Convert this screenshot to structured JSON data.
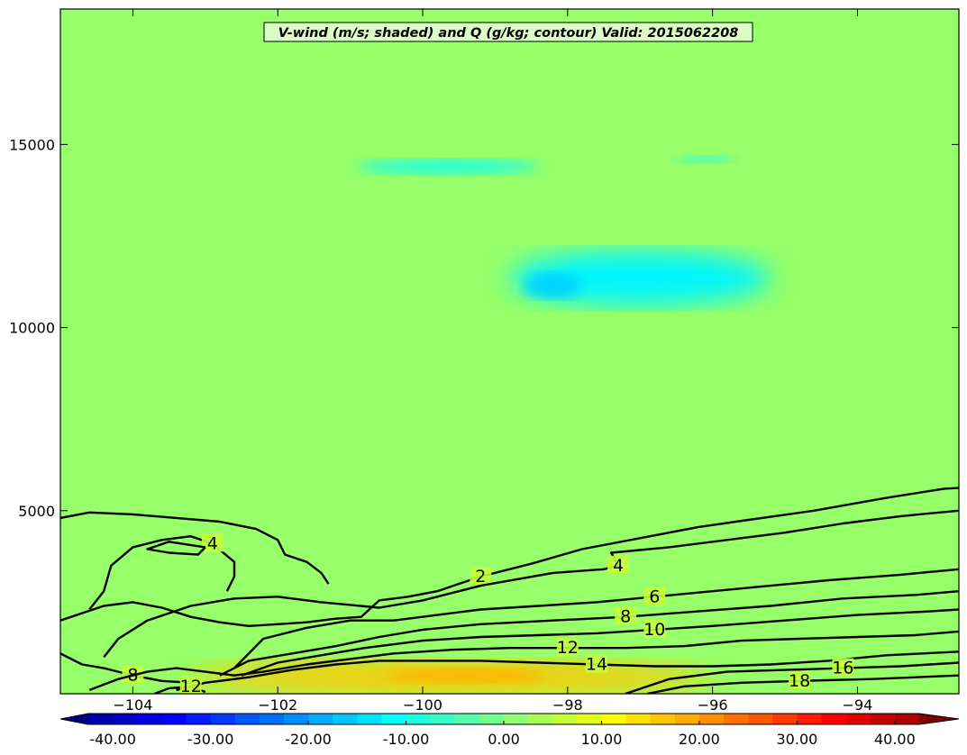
{
  "chart_data": {
    "type": "heatmap",
    "title": "V-wind (m/s; shaded) and Q (g/kg; contour) Valid: 2015062208",
    "xlabel": "",
    "ylabel": "",
    "xlim": [
      -105.0,
      -92.6
    ],
    "ylim": [
      0,
      18700
    ],
    "x_ticks": [
      -104,
      -102,
      -100,
      -98,
      -96,
      -94
    ],
    "y_ticks": [
      5000,
      10000,
      15000
    ],
    "x_tick_labels": [
      "−104",
      "−102",
      "−100",
      "−98",
      "−96",
      "−94"
    ],
    "y_tick_labels": [
      "5000",
      "10000",
      "15000"
    ],
    "colorbar": {
      "min": -45,
      "max": 45,
      "step": 2.5,
      "extend": "both",
      "tick_values": [
        -40,
        -30,
        -20,
        -10,
        0,
        10,
        20,
        30,
        40
      ],
      "tick_labels": [
        "-40.00",
        "-30.00",
        "-20.00",
        "-10.00",
        "0.00",
        "10.00",
        "20.00",
        "30.00",
        "40.00"
      ],
      "colormap": "jet"
    },
    "shaded_regions": [
      {
        "name": "upper-blue-minimum",
        "x": [
          -98.8,
          -95.2
        ],
        "y": [
          10600,
          12100
        ],
        "value": -12
      },
      {
        "name": "upper-blue-core",
        "x": [
          -98.6,
          -97.8
        ],
        "y": [
          10800,
          11500
        ],
        "value": -15
      },
      {
        "name": "high-blue-streak",
        "x": [
          -100.9,
          -98.4
        ],
        "y": [
          14200,
          14600
        ],
        "value": -9
      },
      {
        "name": "high-blue-streak-2",
        "x": [
          -96.5,
          -95.7
        ],
        "y": [
          14500,
          14700
        ],
        "value": -8
      },
      {
        "name": "low-level-jet",
        "x": [
          -103.2,
          -96.0
        ],
        "y": [
          0,
          900
        ],
        "value": 16
      },
      {
        "name": "low-level-jet-core",
        "x": [
          -100.5,
          -98.3
        ],
        "y": [
          300,
          700
        ],
        "value": 18
      }
    ],
    "contours": [
      {
        "level": 2,
        "label": "2",
        "points": [
          [
            -105.0,
            2000
          ],
          [
            -104.4,
            2400
          ],
          [
            -104.0,
            2500
          ],
          [
            -103.6,
            2350
          ],
          [
            -103.2,
            2100
          ],
          [
            -102.8,
            1950
          ],
          [
            -102.4,
            1850
          ],
          [
            -102.0,
            1900
          ],
          [
            -101.6,
            1950
          ],
          [
            -101.2,
            2050
          ],
          [
            -100.85,
            2100
          ],
          [
            -100.6,
            2550
          ],
          [
            -100.2,
            2650
          ],
          [
            -99.8,
            2800
          ],
          [
            -99.2,
            3200
          ],
          [
            -98.5,
            3550
          ],
          [
            -97.8,
            3950
          ],
          [
            -97.0,
            4250
          ],
          [
            -96.2,
            4550
          ],
          [
            -95.5,
            4750
          ],
          [
            -94.6,
            5000
          ],
          [
            -93.6,
            5350
          ],
          [
            -92.8,
            5600
          ],
          [
            -92.6,
            5620
          ]
        ]
      },
      {
        "level": 2,
        "label": "",
        "points": [
          [
            -105.0,
            4800
          ],
          [
            -104.6,
            4950
          ],
          [
            -104.0,
            4900
          ],
          [
            -103.4,
            4800
          ],
          [
            -102.8,
            4700
          ],
          [
            -102.3,
            4500
          ],
          [
            -102.0,
            4200
          ],
          [
            -101.9,
            3800
          ],
          [
            -101.6,
            3600
          ],
          [
            -101.4,
            3300
          ],
          [
            -101.3,
            3000
          ]
        ]
      },
      {
        "level": 4,
        "label": "4",
        "points": [
          [
            -104.6,
            2300
          ],
          [
            -104.4,
            2800
          ],
          [
            -104.3,
            3500
          ],
          [
            -104.0,
            4000
          ],
          [
            -103.6,
            4200
          ],
          [
            -103.2,
            4300
          ],
          [
            -102.9,
            4100
          ],
          [
            -102.6,
            3600
          ],
          [
            -102.6,
            3200
          ],
          [
            -102.7,
            2800
          ]
        ]
      },
      {
        "level": 4,
        "label": "",
        "points": [
          [
            -103.0,
            4000
          ],
          [
            -103.5,
            4150
          ],
          [
            -103.8,
            3950
          ],
          [
            -103.5,
            3850
          ],
          [
            -103.1,
            3800
          ],
          [
            -103.0,
            4000
          ]
        ]
      },
      {
        "level": 4,
        "label": "4",
        "points": [
          [
            -104.4,
            1000
          ],
          [
            -104.2,
            1500
          ],
          [
            -103.8,
            2000
          ],
          [
            -103.2,
            2400
          ],
          [
            -102.6,
            2600
          ],
          [
            -102.0,
            2650
          ],
          [
            -101.4,
            2500
          ],
          [
            -100.6,
            2350
          ],
          [
            -100.0,
            2550
          ],
          [
            -99.2,
            2950
          ],
          [
            -98.2,
            3300
          ],
          [
            -97.5,
            3400
          ],
          [
            -97.3,
            3500
          ],
          [
            -97.4,
            3850
          ],
          [
            -96.6,
            4000
          ],
          [
            -95.8,
            4200
          ],
          [
            -95.0,
            4400
          ],
          [
            -94.2,
            4650
          ],
          [
            -93.4,
            4850
          ],
          [
            -92.6,
            5000
          ]
        ]
      },
      {
        "level": 6,
        "label": "6",
        "points": [
          [
            -102.6,
            700
          ],
          [
            -102.2,
            1500
          ],
          [
            -101.6,
            1800
          ],
          [
            -101.0,
            2000
          ],
          [
            -100.4,
            2000
          ],
          [
            -99.8,
            2150
          ],
          [
            -99.2,
            2300
          ],
          [
            -98.4,
            2400
          ],
          [
            -97.6,
            2500
          ],
          [
            -96.8,
            2650
          ],
          [
            -96.0,
            2800
          ],
          [
            -95.2,
            2950
          ],
          [
            -94.4,
            3100
          ],
          [
            -93.4,
            3250
          ],
          [
            -92.6,
            3400
          ]
        ]
      },
      {
        "level": 8,
        "label": "8",
        "points": [
          [
            -105.0,
            1100
          ],
          [
            -104.7,
            800
          ],
          [
            -104.4,
            700
          ],
          [
            -104.0,
            500
          ],
          [
            -103.6,
            350
          ],
          [
            -103.2,
            300
          ]
        ]
      },
      {
        "level": 8,
        "label": "8",
        "points": [
          [
            -102.8,
            500
          ],
          [
            -102.4,
            900
          ],
          [
            -101.8,
            1100
          ],
          [
            -101.2,
            1300
          ],
          [
            -100.6,
            1550
          ],
          [
            -100.0,
            1750
          ],
          [
            -99.2,
            1900
          ],
          [
            -98.2,
            2000
          ],
          [
            -97.2,
            2100
          ],
          [
            -96.2,
            2250
          ],
          [
            -95.2,
            2400
          ],
          [
            -94.2,
            2600
          ],
          [
            -93.2,
            2700
          ],
          [
            -92.6,
            2800
          ]
        ]
      },
      {
        "level": 10,
        "label": "10",
        "points": [
          [
            -102.5,
            500
          ],
          [
            -102.0,
            850
          ],
          [
            -101.4,
            1050
          ],
          [
            -100.8,
            1250
          ],
          [
            -100.0,
            1450
          ],
          [
            -99.2,
            1550
          ],
          [
            -98.4,
            1600
          ],
          [
            -97.6,
            1650
          ],
          [
            -96.8,
            1750
          ],
          [
            -96.0,
            1850
          ],
          [
            -95.0,
            2000
          ],
          [
            -94.0,
            2150
          ],
          [
            -93.0,
            2250
          ],
          [
            -92.6,
            2300
          ]
        ]
      },
      {
        "level": 12,
        "label": "12",
        "points": [
          [
            -104.6,
            100
          ],
          [
            -104.2,
            400
          ],
          [
            -103.8,
            600
          ],
          [
            -103.4,
            700
          ],
          [
            -103.0,
            600
          ],
          [
            -102.6,
            500
          ],
          [
            -102.2,
            600
          ],
          [
            -101.6,
            800
          ],
          [
            -101.0,
            950
          ],
          [
            -100.4,
            1100
          ],
          [
            -99.6,
            1200
          ],
          [
            -98.8,
            1250
          ],
          [
            -98.0,
            1250
          ],
          [
            -97.2,
            1250
          ],
          [
            -96.4,
            1300
          ],
          [
            -95.6,
            1450
          ],
          [
            -94.8,
            1500
          ],
          [
            -94.0,
            1550
          ],
          [
            -93.2,
            1600
          ],
          [
            -92.6,
            1700
          ]
        ]
      },
      {
        "level": 14,
        "label": "14",
        "points": [
          [
            -103.4,
            100
          ],
          [
            -103.0,
            300
          ],
          [
            -102.4,
            450
          ],
          [
            -101.8,
            650
          ],
          [
            -101.2,
            800
          ],
          [
            -100.6,
            900
          ],
          [
            -100.0,
            900
          ],
          [
            -99.2,
            900
          ],
          [
            -98.4,
            850
          ],
          [
            -97.6,
            800
          ],
          [
            -96.8,
            750
          ],
          [
            -96.0,
            750
          ],
          [
            -95.2,
            800
          ],
          [
            -94.4,
            900
          ],
          [
            -93.6,
            1050
          ],
          [
            -92.6,
            1150
          ]
        ]
      },
      {
        "level": 16,
        "label": "16",
        "points": [
          [
            -97.2,
            0
          ],
          [
            -96.6,
            400
          ],
          [
            -95.8,
            600
          ],
          [
            -95.0,
            650
          ],
          [
            -94.2,
            700
          ],
          [
            -93.4,
            750
          ],
          [
            -92.6,
            850
          ]
        ]
      },
      {
        "level": 18,
        "label": "18",
        "points": [
          [
            -96.9,
            0
          ],
          [
            -96.4,
            200
          ],
          [
            -95.6,
            300
          ],
          [
            -94.8,
            350
          ],
          [
            -93.8,
            400
          ],
          [
            -92.6,
            500
          ]
        ]
      },
      {
        "level": 12,
        "label": "12",
        "points": [
          [
            -103.7,
            0
          ],
          [
            -103.5,
            150
          ],
          [
            -103.2,
            200
          ],
          [
            -103.0,
            50
          ]
        ]
      }
    ]
  }
}
